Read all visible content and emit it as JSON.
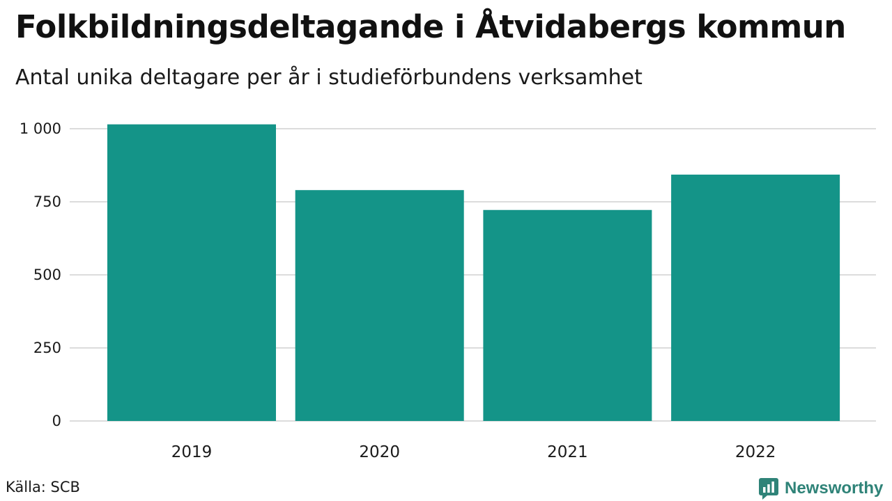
{
  "header": {
    "title": "Folkbildningsdeltagande i Åtvidabergs kommun",
    "subtitle": "Antal unika deltagare per år i studieförbundens verksamhet"
  },
  "footer": {
    "source": "Källa: SCB",
    "brand_name": "Newsworthy",
    "brand_icon": "bar-chart-speech-bubble-icon"
  },
  "colors": {
    "bar": "#149488",
    "brand": "#2f8378",
    "grid": "#dcdcdc"
  },
  "chart_data": {
    "type": "bar",
    "title": "Folkbildningsdeltagande i Åtvidabergs kommun",
    "subtitle": "Antal unika deltagare per år i studieförbundens verksamhet",
    "categories": [
      "2019",
      "2020",
      "2021",
      "2022"
    ],
    "values": [
      1015,
      790,
      722,
      843
    ],
    "ylim": [
      0,
      1000
    ],
    "yticks": [
      0,
      250,
      500,
      750,
      1000
    ],
    "ytick_labels": [
      "0",
      "250",
      "500",
      "750",
      "1 000"
    ],
    "grid": true,
    "legend": false
  }
}
